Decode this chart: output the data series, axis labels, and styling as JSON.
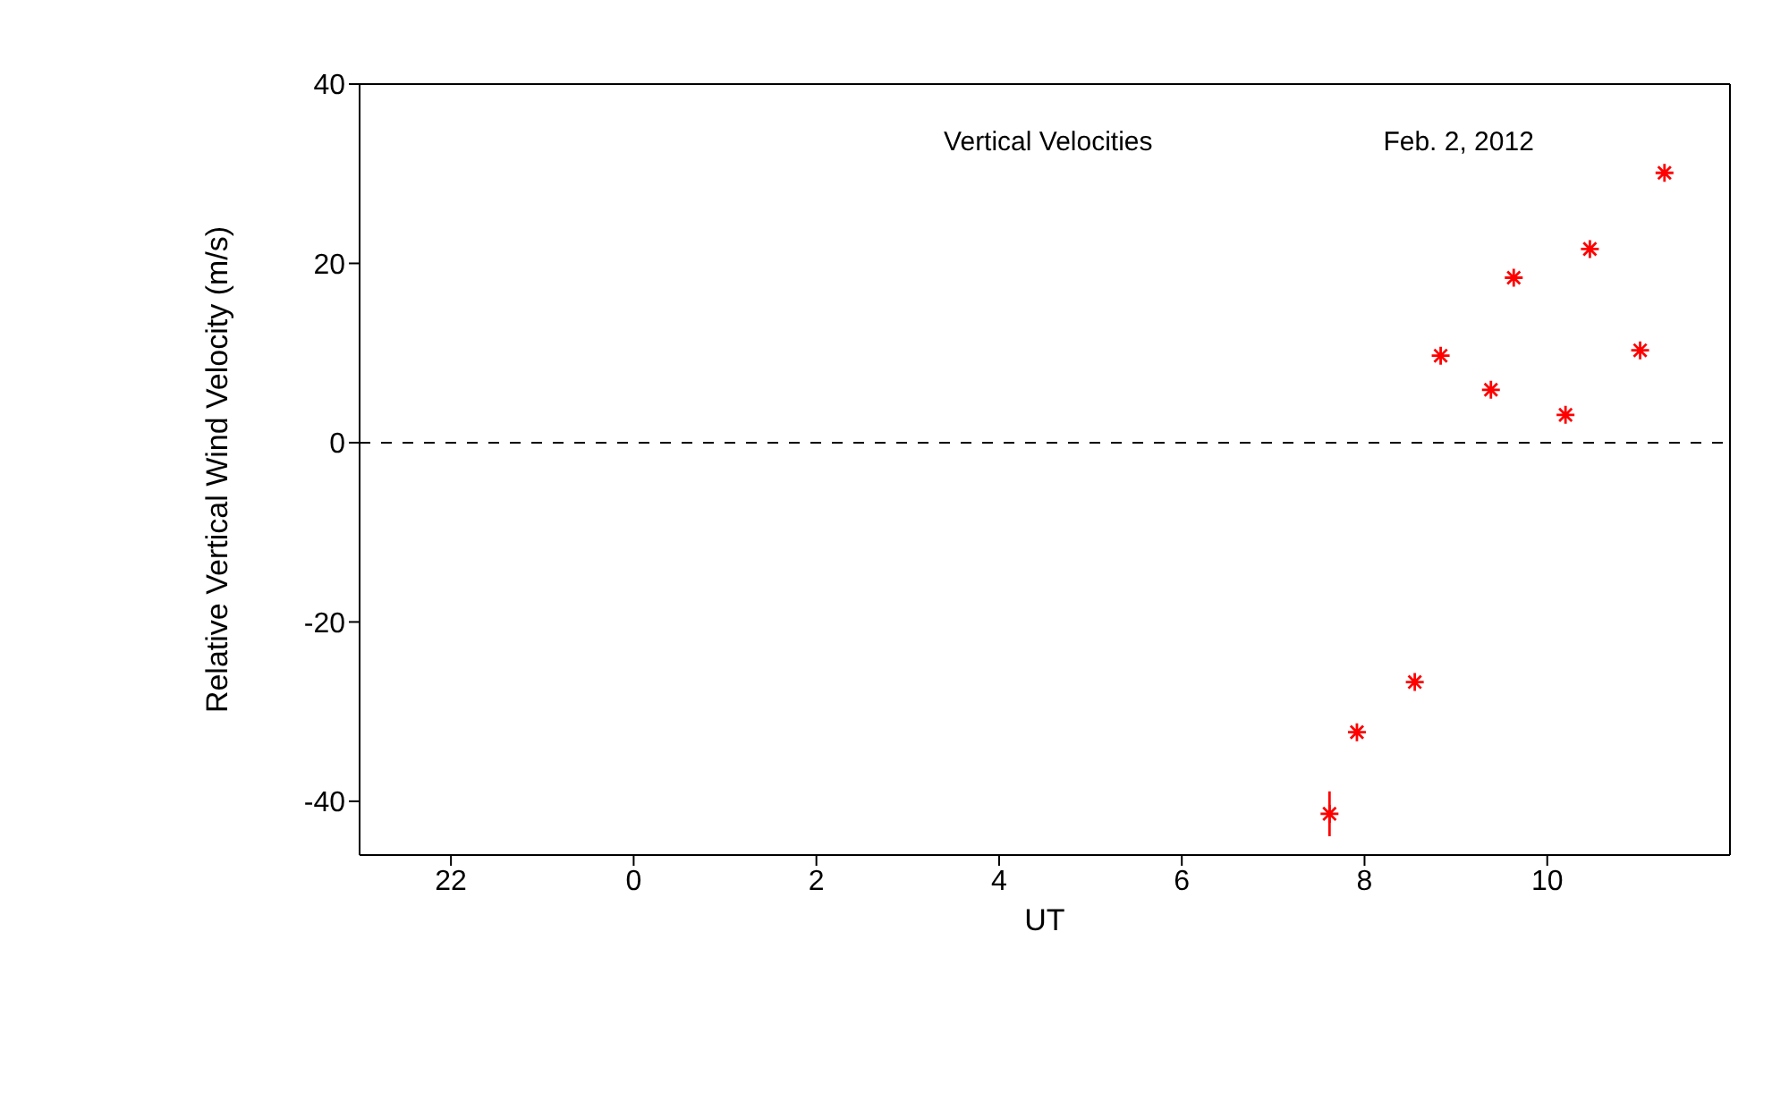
{
  "chart_data": {
    "type": "scatter",
    "title": "Vertical Velocities",
    "subtitle": "Feb. 2, 2012",
    "xlabel": "UT",
    "ylabel": "Relative Vertical Wind Velocity (m/s)",
    "x": [
      "2012-02-02T07:37",
      "2012-02-02T07:55",
      "2012-02-02T08:33",
      "2012-02-02T08:50",
      "2012-02-02T09:23",
      "2012-02-02T09:38",
      "2012-02-02T10:12",
      "2012-02-02T10:28",
      "2012-02-02T11:01",
      "2012-02-02T11:17"
    ],
    "series": [
      {
        "color": "#ff0000",
        "values": [
          -41.4,
          -32.3,
          -26.7,
          9.7,
          5.9,
          18.4,
          3.1,
          21.6,
          10.3,
          30.1
        ],
        "errors": [
          2.5,
          null,
          null,
          null,
          null,
          null,
          null,
          null,
          null,
          null
        ]
      }
    ],
    "xlim": [
      "2012-02-01T21:00",
      "2012-02-02T12:00"
    ],
    "xticks": [
      {
        "value": "2012-02-01T22:00",
        "label": "22"
      },
      {
        "value": "2012-02-02T00:00",
        "label": "0"
      },
      {
        "value": "2012-02-02T02:00",
        "label": "2"
      },
      {
        "value": "2012-02-02T04:00",
        "label": "4"
      },
      {
        "value": "2012-02-02T06:00",
        "label": "6"
      },
      {
        "value": "2012-02-02T08:00",
        "label": "8"
      },
      {
        "value": "2012-02-02T10:00",
        "label": "10"
      }
    ],
    "ylim": [
      -46,
      40
    ],
    "yticks": [
      -40,
      -20,
      0,
      20,
      40
    ],
    "ref_lines": [
      {
        "axis": "y",
        "value": 0,
        "color": "#000000",
        "line_style": "dashed"
      }
    ],
    "marker": "cross"
  }
}
